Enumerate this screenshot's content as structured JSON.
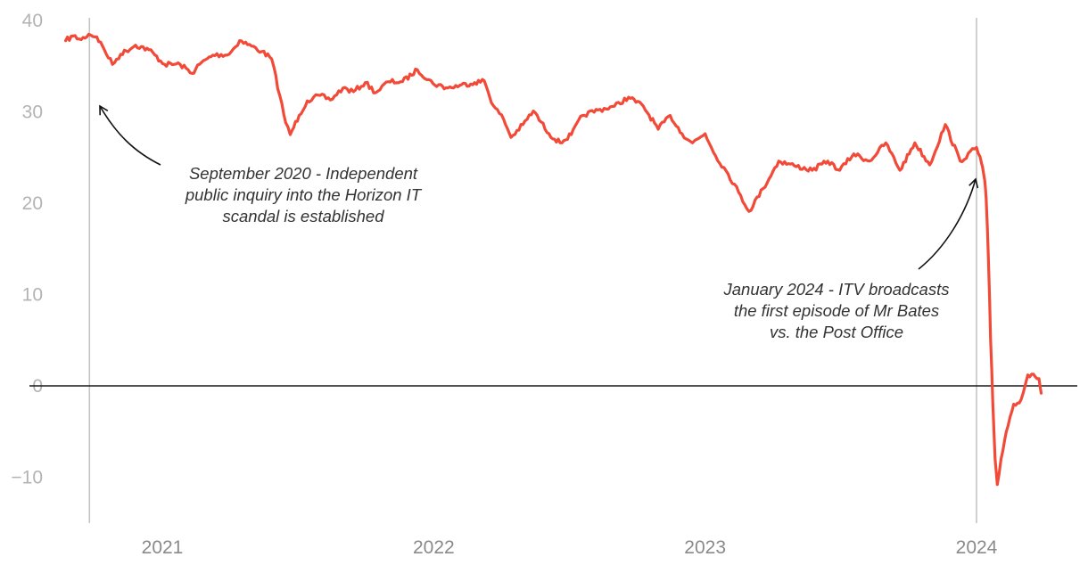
{
  "chart_data": {
    "type": "line",
    "title": "",
    "xlabel": "",
    "ylabel": "",
    "ylim": [
      -15,
      40
    ],
    "yticks": [
      40,
      30,
      20,
      10,
      0,
      -10
    ],
    "ytick_labels": [
      "40",
      "30",
      "20",
      "10",
      "0",
      "−10"
    ],
    "xlim": [
      "2020-08-20",
      "2024-04-30"
    ],
    "xticks": [
      {
        "label": "2021",
        "date": "2021-01-01"
      },
      {
        "label": "2022",
        "date": "2022-01-01"
      },
      {
        "label": "2023",
        "date": "2023-01-01"
      },
      {
        "label": "2024",
        "date": "2024-01-01"
      }
    ],
    "zero_line": true,
    "grid": false,
    "line_color": "#f24a38",
    "axis_color": "#1a1a1a",
    "reference_line_color": "#c4c4c4",
    "series": [
      {
        "points": [
          [
            "2020-08-24",
            37.8
          ],
          [
            "2020-09-03",
            38.3
          ],
          [
            "2020-09-14",
            37.9
          ],
          [
            "2020-09-24",
            38.5
          ],
          [
            "2020-10-05",
            38.2
          ],
          [
            "2020-10-15",
            36.8
          ],
          [
            "2020-10-26",
            35.2
          ],
          [
            "2020-11-06",
            36.3
          ],
          [
            "2020-11-26",
            37.3
          ],
          [
            "2020-12-14",
            36.8
          ],
          [
            "2021-01-04",
            35.2
          ],
          [
            "2021-01-25",
            35.2
          ],
          [
            "2021-02-10",
            34.2
          ],
          [
            "2021-02-20",
            35.2
          ],
          [
            "2021-03-10",
            36.2
          ],
          [
            "2021-04-01",
            36.3
          ],
          [
            "2021-04-15",
            37.8
          ],
          [
            "2021-05-01",
            37.2
          ],
          [
            "2021-05-15",
            36.6
          ],
          [
            "2021-05-28",
            35.8
          ],
          [
            "2021-06-08",
            31.8
          ],
          [
            "2021-06-16",
            28.8
          ],
          [
            "2021-06-22",
            27.5
          ],
          [
            "2021-07-04",
            29.6
          ],
          [
            "2021-07-15",
            31.2
          ],
          [
            "2021-08-01",
            31.8
          ],
          [
            "2021-08-15",
            31.3
          ],
          [
            "2021-09-01",
            32.6
          ],
          [
            "2021-09-15",
            32.2
          ],
          [
            "2021-10-01",
            33.2
          ],
          [
            "2021-10-15",
            32.1
          ],
          [
            "2021-11-01",
            33.3
          ],
          [
            "2021-11-20",
            33.3
          ],
          [
            "2021-12-10",
            34.6
          ],
          [
            "2021-12-31",
            33.1
          ],
          [
            "2022-01-20",
            32.6
          ],
          [
            "2022-02-05",
            32.9
          ],
          [
            "2022-02-25",
            33.2
          ],
          [
            "2022-03-10",
            33.4
          ],
          [
            "2022-03-22",
            30.7
          ],
          [
            "2022-04-05",
            29.2
          ],
          [
            "2022-04-15",
            27.2
          ],
          [
            "2022-05-01",
            28.6
          ],
          [
            "2022-05-15",
            30.1
          ],
          [
            "2022-06-05",
            27.6
          ],
          [
            "2022-06-20",
            26.6
          ],
          [
            "2022-07-05",
            27.5
          ],
          [
            "2022-07-20",
            29.6
          ],
          [
            "2022-08-10",
            30.2
          ],
          [
            "2022-09-01",
            30.6
          ],
          [
            "2022-09-20",
            31.6
          ],
          [
            "2022-10-10",
            30.6
          ],
          [
            "2022-10-30",
            28.1
          ],
          [
            "2022-11-15",
            29.6
          ],
          [
            "2022-12-01",
            27.6
          ],
          [
            "2022-12-15",
            26.6
          ],
          [
            "2023-01-01",
            27.6
          ],
          [
            "2023-01-15",
            25.2
          ],
          [
            "2023-02-01",
            23.2
          ],
          [
            "2023-02-15",
            21.2
          ],
          [
            "2023-03-01",
            19.1
          ],
          [
            "2023-03-20",
            21.6
          ],
          [
            "2023-04-10",
            24.6
          ],
          [
            "2023-05-01",
            24.1
          ],
          [
            "2023-05-25",
            23.6
          ],
          [
            "2023-06-15",
            24.6
          ],
          [
            "2023-07-01",
            23.6
          ],
          [
            "2023-07-20",
            25.4
          ],
          [
            "2023-08-10",
            24.6
          ],
          [
            "2023-09-01",
            26.6
          ],
          [
            "2023-09-20",
            23.6
          ],
          [
            "2023-10-10",
            26.6
          ],
          [
            "2023-10-30",
            24.2
          ],
          [
            "2023-11-20",
            28.6
          ],
          [
            "2023-12-10",
            24.6
          ],
          [
            "2024-01-01",
            26.1
          ],
          [
            "2024-01-08",
            24.3
          ],
          [
            "2024-01-10",
            23.5
          ],
          [
            "2024-01-12",
            22.5
          ],
          [
            "2024-01-14",
            20.5
          ],
          [
            "2024-01-17",
            14.0
          ],
          [
            "2024-01-20",
            5.0
          ],
          [
            "2024-01-23",
            -2.0
          ],
          [
            "2024-01-26",
            -8.0
          ],
          [
            "2024-01-29",
            -10.8
          ],
          [
            "2024-02-03",
            -8.0
          ],
          [
            "2024-02-10",
            -5.0
          ],
          [
            "2024-02-20",
            -2.0
          ],
          [
            "2024-03-01",
            -1.5
          ],
          [
            "2024-03-10",
            1.2
          ],
          [
            "2024-03-20",
            1.0
          ],
          [
            "2024-03-25",
            0.8
          ],
          [
            "2024-03-28",
            -0.8
          ]
        ]
      }
    ],
    "reference_lines": [
      {
        "date": "2020-09-25"
      },
      {
        "date": "2024-01-01"
      }
    ],
    "annotations": [
      {
        "lines": [
          "September 2020 - Independent",
          "public inquiry into the Horizon IT",
          "scandal is established"
        ],
        "target_date": "2020-09-25",
        "target_value": 30.5
      },
      {
        "lines": [
          "January 2024 - ITV broadcasts",
          "the first episode of Mr Bates",
          "vs. the Post Office"
        ],
        "target_date": "2024-01-01",
        "target_value": 24.0
      }
    ]
  }
}
